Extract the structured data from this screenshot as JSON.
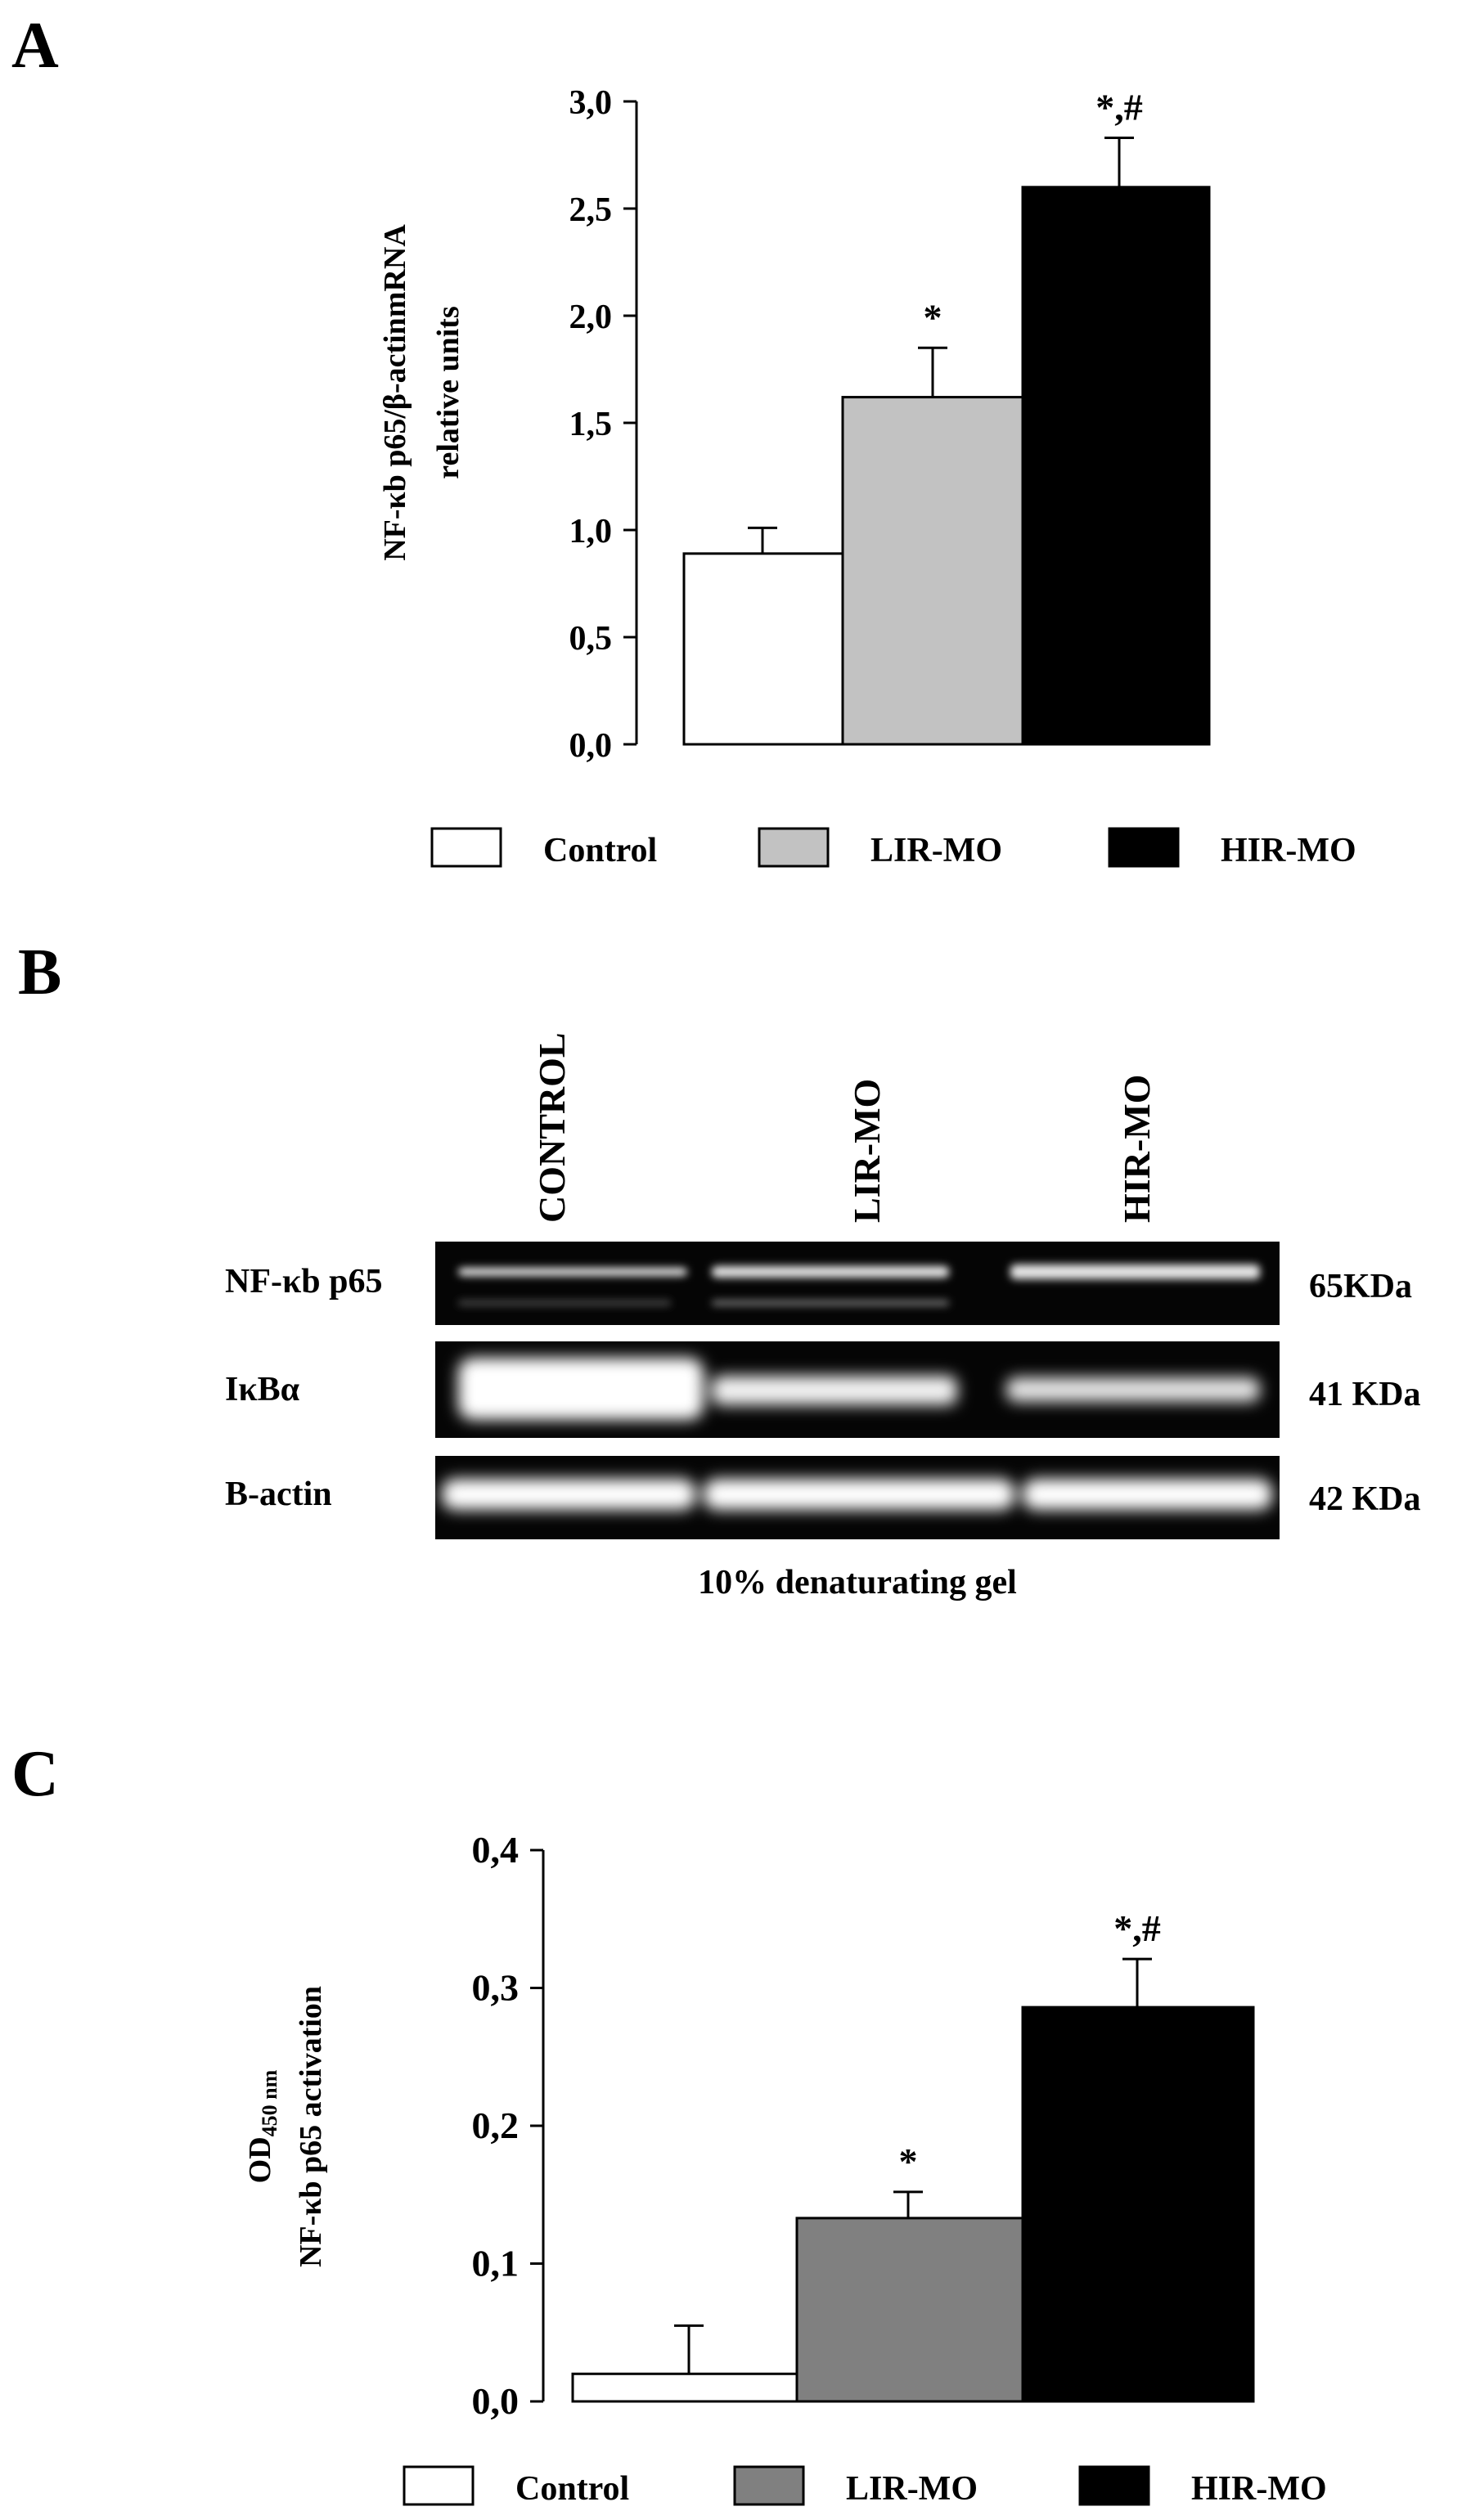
{
  "panels": {
    "A": {
      "letter": "A",
      "chart_data": {
        "type": "bar",
        "ylabel_line1": "NF-κb p65/β-actinmRNA",
        "ylabel_line2": "relative units",
        "ylim": [
          0,
          3.0
        ],
        "yticks": [
          "0,0",
          "0,5",
          "1,0",
          "1,5",
          "2,0",
          "2,5",
          "3,0"
        ],
        "categories": [
          "Control",
          "LIR-MO",
          "HIR-MO"
        ],
        "values": [
          0.89,
          1.62,
          2.6
        ],
        "errors": [
          0.12,
          0.23,
          0.23
        ],
        "annotations": [
          "",
          "*",
          "*,#"
        ],
        "colors": [
          "#ffffff",
          "#c2c2c2",
          "#000000"
        ],
        "legend": [
          "Control",
          "LIR-MO",
          "HIR-MO"
        ],
        "grid": false
      }
    },
    "B": {
      "letter": "B",
      "lanes": [
        "CONTROL",
        "LIR-MO",
        "HIR-MO"
      ],
      "rows": [
        {
          "label": "NF-κb p65",
          "weight": "65KDa"
        },
        {
          "label": "IκBα",
          "weight": "41 KDa"
        },
        {
          "label": "B-actin",
          "weight": "42 KDa"
        }
      ],
      "caption": "10% denaturating gel"
    },
    "C": {
      "letter": "C",
      "chart_data": {
        "type": "bar",
        "ylabel_od": "OD",
        "ylabel_od_sub": "450 nm",
        "ylabel_line2": "NF-κb p65 activation",
        "ylim": [
          0,
          0.4
        ],
        "yticks": [
          "0,0",
          "0,1",
          "0,2",
          "0,3",
          "0,4"
        ],
        "categories": [
          "Control",
          "LIR-MO",
          "HIR-MO"
        ],
        "values": [
          0.02,
          0.133,
          0.286
        ],
        "errors": [
          0.035,
          0.019,
          0.035
        ],
        "annotations": [
          "",
          "*",
          "*,#"
        ],
        "colors": [
          "#ffffff",
          "#808080",
          "#000000"
        ],
        "legend": [
          "Control",
          "LIR-MO",
          "HIR-MO"
        ],
        "grid": false
      }
    }
  }
}
